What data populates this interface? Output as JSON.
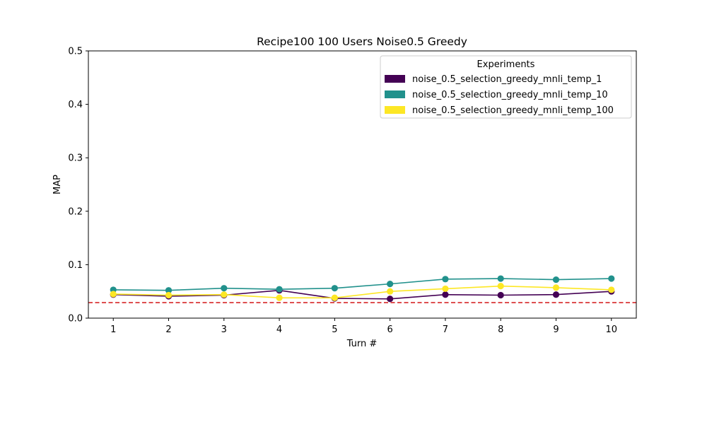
{
  "chart_data": {
    "type": "line",
    "title": "Recipe100 100 Users Noise0.5 Greedy",
    "xlabel": "Turn #",
    "ylabel": "MAP",
    "x": [
      1,
      2,
      3,
      4,
      5,
      6,
      7,
      8,
      9,
      10
    ],
    "xticks": [
      "1",
      "2",
      "3",
      "4",
      "5",
      "6",
      "7",
      "8",
      "9",
      "10"
    ],
    "yticks": [
      "0.0",
      "0.1",
      "0.2",
      "0.3",
      "0.4",
      "0.5"
    ],
    "xlim": [
      0.55,
      10.45
    ],
    "ylim": [
      0,
      0.5
    ],
    "grid": false,
    "legend": {
      "title": "Experiments",
      "placement": "top-right"
    },
    "series": [
      {
        "name": "noise_0.5_selection_greedy_mnli_temp_1",
        "color": "#440154",
        "values": [
          0.044,
          0.041,
          0.043,
          0.052,
          0.037,
          0.036,
          0.044,
          0.043,
          0.044,
          0.05
        ]
      },
      {
        "name": "noise_0.5_selection_greedy_mnli_temp_10",
        "color": "#21918c",
        "values": [
          0.053,
          0.052,
          0.056,
          0.054,
          0.056,
          0.064,
          0.073,
          0.074,
          0.072,
          0.074
        ]
      },
      {
        "name": "noise_0.5_selection_greedy_mnli_temp_100",
        "color": "#fde725",
        "values": [
          0.045,
          0.043,
          0.044,
          0.038,
          0.038,
          0.05,
          0.055,
          0.06,
          0.057,
          0.053
        ]
      }
    ],
    "reference_line": {
      "y": 0.029,
      "color": "#d62728",
      "style": "dashed"
    }
  }
}
